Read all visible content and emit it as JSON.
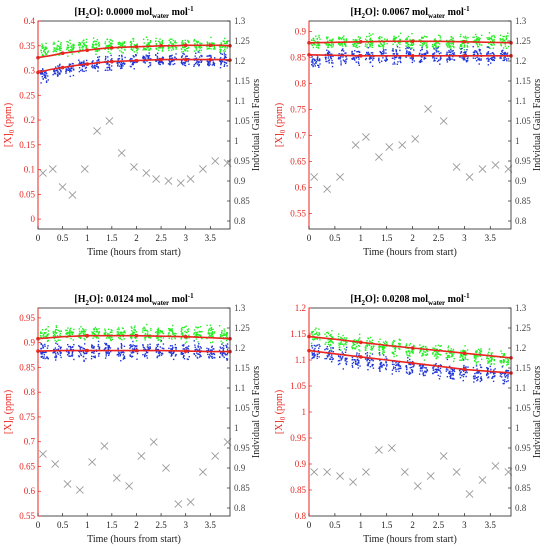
{
  "colors": {
    "red_axis": "#e8251f",
    "fit_line": "#e8251f",
    "green_points": "#22ee22",
    "blue_points": "#1f35d8",
    "gain_markers": "#9a9a9a",
    "right_axis": "#444444"
  },
  "chart_data": [
    {
      "type": "scatter",
      "title_prefix": "[H",
      "title_sub": "2",
      "title_mid": "O]: 0.0000 mol",
      "title_sub2": "water",
      "title_end": " mol",
      "title_sup": "-1",
      "xlabel": "Time (hours from start)",
      "ylabel_left_main": "[X]",
      "ylabel_left_sub": "0",
      "ylabel_left_unit": " (ppm)",
      "ylabel_right": "Indvidual Gain Factors",
      "xlim": [
        0,
        3.9
      ],
      "ylim_left": [
        -0.02,
        0.4
      ],
      "ylim_right": [
        0.78,
        1.3
      ],
      "xticks": [
        "0",
        "0.5",
        "1",
        "1.5",
        "2",
        "2.5",
        "3",
        "3.5"
      ],
      "yticks_left": [
        "0",
        "0.05",
        "0.1",
        "0.15",
        "0.2",
        "0.25",
        "0.3",
        "0.35",
        "0.4"
      ],
      "yticks_right": [
        "0.8",
        "0.85",
        "0.9",
        "0.95",
        "1",
        "1.05",
        "1.1",
        "1.15",
        "1.2",
        "1.25",
        "1.3"
      ],
      "green_cluster": {
        "name": "green",
        "center": [
          0.34,
          0.345,
          0.345,
          0.35,
          0.35,
          0.35,
          0.35,
          0.35,
          0.35,
          0.35,
          0.35,
          0.35,
          0.35,
          0.35,
          0.35
        ],
        "spread": 0.02
      },
      "blue_cluster": {
        "name": "blue",
        "center": [
          0.29,
          0.3,
          0.305,
          0.31,
          0.315,
          0.315,
          0.315,
          0.318,
          0.32,
          0.32,
          0.32,
          0.32,
          0.32,
          0.32,
          0.32
        ],
        "spread": 0.02
      },
      "fit_upper": {
        "x": [
          0,
          0.25,
          0.5,
          0.75,
          1,
          1.25,
          1.5,
          1.75,
          2,
          2.25,
          2.5,
          2.75,
          3,
          3.25,
          3.5,
          3.75,
          3.9
        ],
        "y": [
          0.326,
          0.33,
          0.335,
          0.338,
          0.341,
          0.344,
          0.346,
          0.347,
          0.348,
          0.349,
          0.35,
          0.35,
          0.351,
          0.351,
          0.351,
          0.351,
          0.35
        ]
      },
      "fit_lower": {
        "x": [
          0,
          0.25,
          0.5,
          0.75,
          1,
          1.25,
          1.5,
          1.75,
          2,
          2.25,
          2.5,
          2.75,
          3,
          3.25,
          3.5,
          3.75,
          3.9
        ],
        "y": [
          0.296,
          0.302,
          0.306,
          0.31,
          0.313,
          0.316,
          0.318,
          0.319,
          0.32,
          0.321,
          0.322,
          0.322,
          0.322,
          0.322,
          0.322,
          0.322,
          0.321
        ]
      },
      "gain_factors": {
        "x": [
          0.1,
          0.3,
          0.5,
          0.7,
          0.95,
          1.2,
          1.45,
          1.7,
          1.95,
          2.2,
          2.4,
          2.65,
          2.9,
          3.1,
          3.35,
          3.6,
          3.85
        ],
        "y": [
          0.92,
          0.93,
          0.885,
          0.865,
          0.93,
          1.025,
          1.05,
          0.97,
          0.935,
          0.92,
          0.905,
          0.9,
          0.895,
          0.905,
          0.93,
          0.95,
          0.945
        ]
      }
    },
    {
      "type": "scatter",
      "title_prefix": "[H",
      "title_sub": "2",
      "title_mid": "O]: 0.0067 mol",
      "title_sub2": "water",
      "title_end": " mol",
      "title_sup": "-1",
      "xlabel": "Time (hours from start)",
      "ylabel_left_main": "[X]",
      "ylabel_left_sub": "0",
      "ylabel_left_unit": " (ppm)",
      "ylabel_right": "Indvidual Gain Factors",
      "xlim": [
        0,
        3.9
      ],
      "ylim_left": [
        0.52,
        0.92
      ],
      "ylim_right": [
        0.78,
        1.3
      ],
      "xticks": [
        "0",
        "0.5",
        "1",
        "1.5",
        "2",
        "2.5",
        "3",
        "3.5"
      ],
      "yticks_left": [
        "0.55",
        "0.6",
        "0.65",
        "0.7",
        "0.75",
        "0.8",
        "0.85",
        "0.9"
      ],
      "yticks_right": [
        "0.8",
        "0.85",
        "0.9",
        "0.95",
        "1",
        "1.05",
        "1.1",
        "1.15",
        "1.2",
        "1.25",
        "1.3"
      ],
      "green_cluster": {
        "name": "green",
        "center": [
          0.88,
          0.88,
          0.88,
          0.88,
          0.88,
          0.88,
          0.88,
          0.88,
          0.88,
          0.88,
          0.88,
          0.88,
          0.88,
          0.88,
          0.88
        ],
        "spread": 0.02
      },
      "blue_cluster": {
        "name": "blue",
        "center": [
          0.845,
          0.848,
          0.85,
          0.852,
          0.852,
          0.853,
          0.853,
          0.853,
          0.853,
          0.853,
          0.853,
          0.853,
          0.853,
          0.853,
          0.853
        ],
        "spread": 0.022
      },
      "fit_upper": {
        "x": [
          0,
          0.5,
          1,
          1.5,
          2,
          2.5,
          3,
          3.5,
          3.9
        ],
        "y": [
          0.878,
          0.879,
          0.88,
          0.881,
          0.881,
          0.881,
          0.88,
          0.879,
          0.878
        ]
      },
      "fit_lower": {
        "x": [
          0,
          0.5,
          1,
          1.5,
          2,
          2.5,
          3,
          3.5,
          3.9
        ],
        "y": [
          0.855,
          0.854,
          0.853,
          0.853,
          0.853,
          0.853,
          0.853,
          0.853,
          0.853
        ]
      },
      "gain_factors": {
        "x": [
          0.1,
          0.35,
          0.6,
          0.9,
          1.1,
          1.35,
          1.55,
          1.8,
          2.05,
          2.3,
          2.6,
          2.85,
          3.1,
          3.35,
          3.6,
          3.85
        ],
        "y": [
          0.91,
          0.88,
          0.91,
          0.99,
          1.01,
          0.96,
          0.985,
          0.99,
          1.005,
          1.08,
          1.05,
          0.935,
          0.91,
          0.93,
          0.94,
          0.93
        ]
      }
    },
    {
      "type": "scatter",
      "title_prefix": "[H",
      "title_sub": "2",
      "title_mid": "O]: 0.0124 mol",
      "title_sub2": "water",
      "title_end": " mol",
      "title_sup": "-1",
      "xlabel": "Time (hours from start)",
      "ylabel_left_main": "[X]",
      "ylabel_left_sub": "0",
      "ylabel_left_unit": " (ppm)",
      "ylabel_right": "Indvidual Gain Factors",
      "xlim": [
        0,
        3.9
      ],
      "ylim_left": [
        0.55,
        0.97
      ],
      "ylim_right": [
        0.78,
        1.3
      ],
      "xticks": [
        "0",
        "0.5",
        "1",
        "1.5",
        "2",
        "2.5",
        "3",
        "3.5"
      ],
      "yticks_left": [
        "0.55",
        "0.6",
        "0.65",
        "0.7",
        "0.75",
        "0.8",
        "0.85",
        "0.9",
        "0.95"
      ],
      "yticks_right": [
        "0.8",
        "0.85",
        "0.9",
        "0.95",
        "1",
        "1.05",
        "1.1",
        "1.15",
        "1.2",
        "1.25",
        "1.3"
      ],
      "green_cluster": {
        "name": "green",
        "center": [
          0.915,
          0.918,
          0.918,
          0.918,
          0.918,
          0.918,
          0.918,
          0.918,
          0.918,
          0.918,
          0.918,
          0.918,
          0.918,
          0.918,
          0.915
        ],
        "spread": 0.022
      },
      "blue_cluster": {
        "name": "blue",
        "center": [
          0.882,
          0.882,
          0.883,
          0.883,
          0.883,
          0.883,
          0.883,
          0.883,
          0.883,
          0.883,
          0.883,
          0.883,
          0.883,
          0.882,
          0.882
        ],
        "spread": 0.024
      },
      "fit_upper": {
        "x": [
          0,
          0.5,
          1,
          1.5,
          2,
          2.5,
          3,
          3.5,
          3.9
        ],
        "y": [
          0.908,
          0.912,
          0.914,
          0.914,
          0.914,
          0.913,
          0.912,
          0.91,
          0.908
        ]
      },
      "fit_lower": {
        "x": [
          0,
          0.5,
          1,
          1.5,
          2,
          2.5,
          3,
          3.5,
          3.9
        ],
        "y": [
          0.883,
          0.884,
          0.884,
          0.884,
          0.884,
          0.884,
          0.883,
          0.882,
          0.882
        ]
      },
      "gain_factors": {
        "x": [
          0.1,
          0.35,
          0.6,
          0.85,
          1.1,
          1.35,
          1.6,
          1.85,
          2.1,
          2.35,
          2.6,
          2.85,
          3.1,
          3.35,
          3.6,
          3.85
        ],
        "y": [
          0.935,
          0.91,
          0.86,
          0.845,
          0.915,
          0.955,
          0.875,
          0.855,
          0.93,
          0.965,
          0.9,
          0.81,
          0.815,
          0.89,
          0.93,
          0.965
        ]
      }
    },
    {
      "type": "scatter",
      "title_prefix": "[H",
      "title_sub": "2",
      "title_mid": "O]: 0.0208 mol",
      "title_sub2": "water",
      "title_end": " mol",
      "title_sup": "-1",
      "xlabel": "Time (hours from start)",
      "ylabel_left_main": "[X]",
      "ylabel_left_sub": "0",
      "ylabel_left_unit": " (ppm)",
      "ylabel_right": "Indvidual Gain Factors",
      "xlim": [
        0,
        3.9
      ],
      "ylim_left": [
        0.8,
        1.2
      ],
      "ylim_right": [
        0.78,
        1.3
      ],
      "xticks": [
        "0",
        "0.5",
        "1",
        "1.5",
        "2",
        "2.5",
        "3",
        "3.5"
      ],
      "yticks_left": [
        "0.8",
        "0.85",
        "0.9",
        "0.95",
        "1",
        "1.05",
        "1.1",
        "1.15",
        "1.2"
      ],
      "yticks_right": [
        "0.8",
        "0.85",
        "0.9",
        "0.95",
        "1",
        "1.05",
        "1.1",
        "1.15",
        "1.2",
        "1.25",
        "1.3"
      ],
      "green_cluster": {
        "name": "green",
        "center": [
          1.145,
          1.14,
          1.135,
          1.13,
          1.128,
          1.125,
          1.122,
          1.12,
          1.118,
          1.115,
          1.112,
          1.11,
          1.108,
          1.105,
          1.102
        ],
        "spread": 0.022
      },
      "blue_cluster": {
        "name": "blue",
        "center": [
          1.115,
          1.11,
          1.105,
          1.1,
          1.097,
          1.094,
          1.09,
          1.087,
          1.084,
          1.081,
          1.078,
          1.077,
          1.075,
          1.075,
          1.073
        ],
        "spread": 0.024
      },
      "fit_upper": {
        "x": [
          0,
          0.5,
          1,
          1.5,
          2,
          2.5,
          3,
          3.5,
          3.9
        ],
        "y": [
          1.145,
          1.14,
          1.134,
          1.128,
          1.123,
          1.118,
          1.113,
          1.108,
          1.104
        ]
      },
      "fit_lower": {
        "x": [
          0,
          0.5,
          1,
          1.5,
          2,
          2.5,
          3,
          3.5,
          3.9
        ],
        "y": [
          1.118,
          1.112,
          1.106,
          1.1,
          1.094,
          1.088,
          1.082,
          1.078,
          1.075
        ]
      },
      "gain_factors": {
        "x": [
          0.1,
          0.35,
          0.6,
          0.85,
          1.1,
          1.35,
          1.6,
          1.85,
          2.1,
          2.35,
          2.6,
          2.85,
          3.1,
          3.35,
          3.6,
          3.85
        ],
        "y": [
          0.89,
          0.89,
          0.88,
          0.865,
          0.89,
          0.945,
          0.95,
          0.89,
          0.855,
          0.88,
          0.93,
          0.89,
          0.835,
          0.87,
          0.905,
          0.89
        ]
      }
    }
  ]
}
